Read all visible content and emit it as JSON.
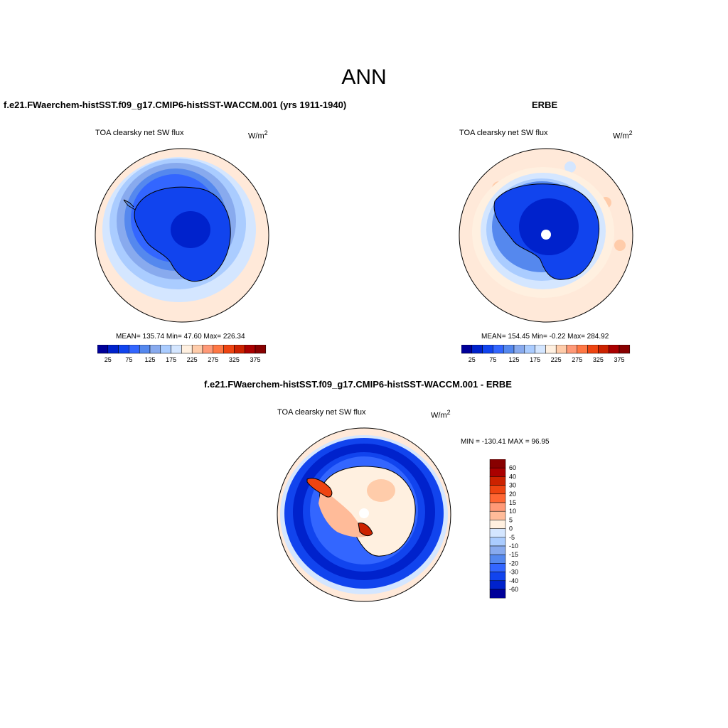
{
  "figure": {
    "title": "ANN"
  },
  "panels": [
    {
      "title": "f.e21.FWaerchem-histSST.f09_g17.CMIP6-histSST-WACCM.001 (yrs 1911-1940)",
      "variable": "TOA clearsky net SW flux",
      "units_base": "W/m",
      "units_exp": "2",
      "stats": "MEAN= 135.74  Min=  47.60  Max= 226.34"
    },
    {
      "title": "ERBE",
      "variable": "TOA clearsky net SW flux",
      "units_base": "W/m",
      "units_exp": "2",
      "stats": "MEAN= 154.45  Min=  -0.22  Max= 284.92"
    },
    {
      "title": "f.e21.FWaerchem-histSST.f09_g17.CMIP6-histSST-WACCM.001 - ERBE",
      "variable": "TOA clearsky net SW flux",
      "units_base": "W/m",
      "units_exp": "2",
      "stats": "MIN = -130.41 MAX =  96.95"
    }
  ],
  "colorbar_abs": {
    "colors": [
      "#000099",
      "#0022cc",
      "#1144ee",
      "#3366ff",
      "#5588ee",
      "#88aaee",
      "#aaccff",
      "#d4e6ff",
      "#fff0e0",
      "#ffccaa",
      "#ff9977",
      "#ff7744",
      "#ee4411",
      "#cc2200",
      "#aa0000",
      "#880000"
    ],
    "labels": [
      "25",
      "75",
      "125",
      "175",
      "225",
      "275",
      "325",
      "375"
    ]
  },
  "colorbar_diff": {
    "colors": [
      "#880000",
      "#aa0000",
      "#cc2200",
      "#ee4411",
      "#ff6633",
      "#ff9977",
      "#ffbb99",
      "#fff0e0",
      "#d4e6ff",
      "#aaccff",
      "#88aaee",
      "#5588ee",
      "#3366ff",
      "#1144ee",
      "#0022cc",
      "#000099"
    ],
    "labels": [
      "60",
      "40",
      "30",
      "20",
      "15",
      "10",
      "5",
      "0",
      "-5",
      "-10",
      "-15",
      "-20",
      "-30",
      "-40",
      "-60"
    ]
  }
}
